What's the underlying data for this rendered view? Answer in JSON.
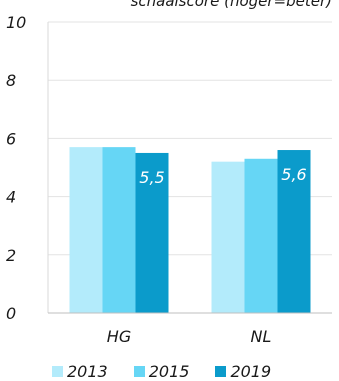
{
  "chart_data": {
    "type": "bar",
    "title": "schaalscore (hoger=beter)",
    "categories": [
      "HG",
      "NL"
    ],
    "series": [
      {
        "name": "2013",
        "values": [
          5.7,
          5.2
        ],
        "color": "#b3ebfb"
      },
      {
        "name": "2015",
        "values": [
          5.7,
          5.3
        ],
        "color": "#66d6f5"
      },
      {
        "name": "2019",
        "values": [
          5.5,
          5.6
        ],
        "color": "#0b9bcb"
      }
    ],
    "data_labels": [
      {
        "series": "2019",
        "category": "HG",
        "text": "5,5"
      },
      {
        "series": "2019",
        "category": "NL",
        "text": "5,6"
      }
    ],
    "y_ticks": [
      "0",
      "2",
      "4",
      "6",
      "8",
      "10"
    ],
    "ylim": [
      0,
      10
    ],
    "grid": true,
    "legend_position": "bottom",
    "xlabel": "",
    "ylabel": ""
  }
}
